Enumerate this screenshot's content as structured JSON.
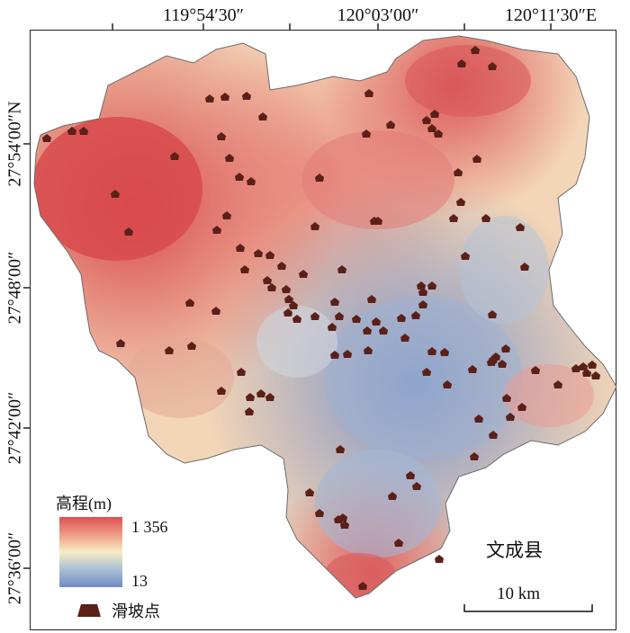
{
  "map": {
    "top_ticks": [
      "119°54′30″",
      "120°03′00″",
      "120°11′30″E"
    ],
    "left_ticks": [
      "27°54′00″N",
      "27°48′00″",
      "27°42′00″",
      "27°36′00″"
    ],
    "county_name": "文成县",
    "scale_label": "10 km",
    "legend": {
      "title": "高程(m)",
      "high": "1 356",
      "low": "13",
      "landslide_label": "滑坡点",
      "colors": [
        "#de5050",
        "#ef9c86",
        "#f7ecc4",
        "#a9bfd6",
        "#6f8bc2"
      ],
      "landslide_color": "#5b2018"
    }
  }
}
